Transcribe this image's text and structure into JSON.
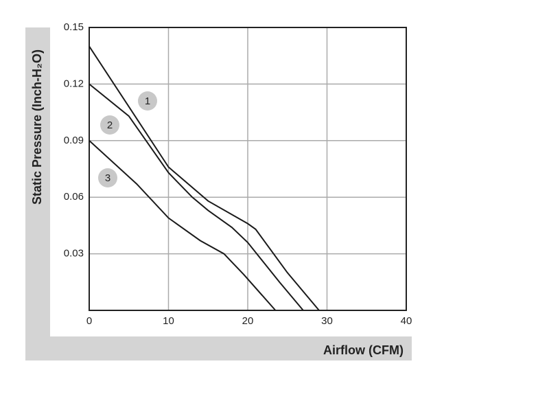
{
  "chart_data": {
    "type": "line",
    "xlabel": "Airflow (CFM)",
    "ylabel": "Static Pressure (Inch-H₂O)",
    "xlim": [
      0,
      40
    ],
    "xticks": [
      0,
      10,
      20,
      30,
      40
    ],
    "ylim": [
      0,
      0.15
    ],
    "yticks": [
      0.03,
      0.06,
      0.09,
      0.12,
      0.15
    ],
    "grid": true,
    "series": [
      {
        "name": "1",
        "color": "#1a1a1a",
        "x": [
          0,
          5,
          10,
          15,
          20,
          21,
          25,
          29
        ],
        "values": [
          0.14,
          0.108,
          0.076,
          0.058,
          0.046,
          0.043,
          0.02,
          0
        ]
      },
      {
        "name": "2",
        "color": "#1a1a1a",
        "x": [
          0,
          5,
          10,
          13,
          15,
          18,
          20,
          24,
          27
        ],
        "values": [
          0.12,
          0.103,
          0.073,
          0.06,
          0.053,
          0.044,
          0.036,
          0.015,
          0
        ]
      },
      {
        "name": "3",
        "color": "#1a1a1a",
        "x": [
          0,
          6,
          10,
          14,
          17,
          19.5,
          23.5
        ],
        "values": [
          0.09,
          0.067,
          0.049,
          0.037,
          0.03,
          0.019,
          0
        ]
      }
    ]
  }
}
